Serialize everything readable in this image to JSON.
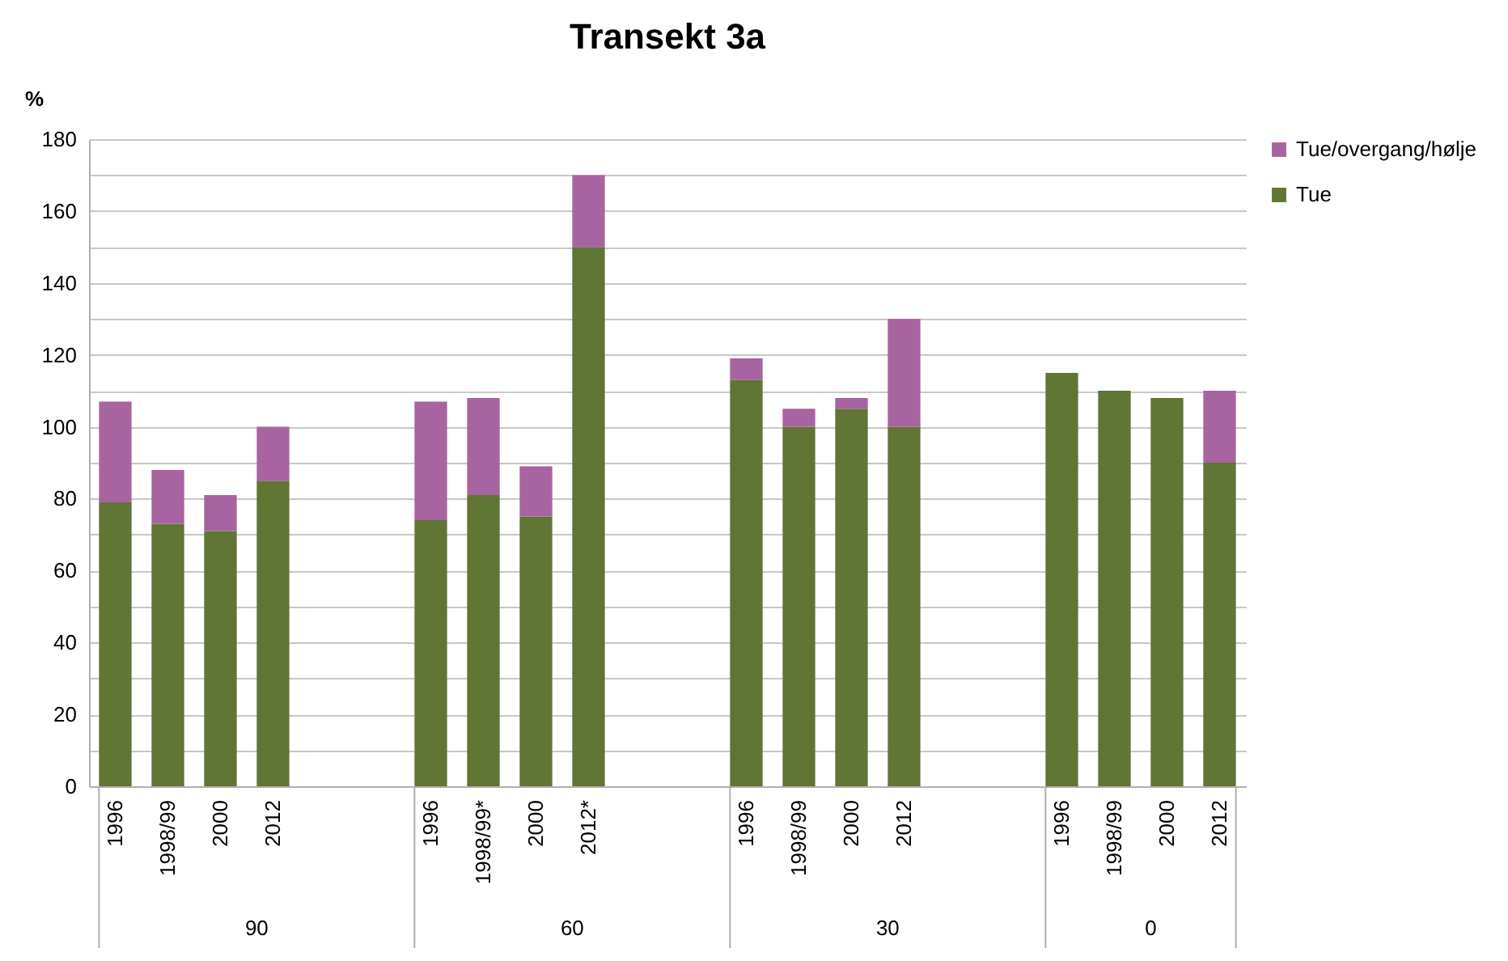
{
  "chart_data": {
    "type": "bar",
    "title": "Transekt 3a",
    "ylabel": "%",
    "stacked": true,
    "categories": [
      "1996",
      "1998/99",
      "2000",
      "2012",
      null,
      null,
      "1996",
      "1998/99*",
      "2000",
      "2012*",
      null,
      null,
      "1996",
      "1998/99",
      "2000",
      "2012",
      null,
      null,
      "1996",
      "1998/99",
      "2000",
      "2012"
    ],
    "series": [
      {
        "name": "Tue",
        "color": "#617534",
        "values": [
          79,
          73,
          71,
          85,
          null,
          null,
          74,
          81,
          75,
          150,
          null,
          null,
          113,
          100,
          105,
          100,
          null,
          null,
          115,
          110,
          108,
          90
        ]
      },
      {
        "name": "Tue/overgang/hølje",
        "color": "#a864a0",
        "values": [
          28,
          15,
          10,
          15,
          null,
          null,
          33,
          27,
          14,
          20,
          null,
          null,
          6,
          5,
          3,
          30,
          null,
          null,
          null,
          null,
          null,
          20
        ]
      }
    ],
    "annotations": [
      "90",
      "60",
      "30",
      "0"
    ],
    "ylim": [
      0,
      180
    ],
    "yticks": [
      0,
      {
        "value": 10,
        "label": null
      },
      20,
      {
        "value": 30,
        "label": null
      },
      40,
      {
        "value": 50,
        "label": null
      },
      60,
      {
        "value": 70,
        "label": null
      },
      80,
      {
        "value": 90,
        "label": null
      },
      100,
      {
        "value": 110,
        "label": null
      },
      120,
      {
        "value": 130,
        "label": null
      },
      140,
      {
        "value": 150,
        "label": null
      },
      160,
      {
        "value": 170,
        "label": null
      },
      180
    ],
    "grid": "y",
    "legend": "top right"
  }
}
